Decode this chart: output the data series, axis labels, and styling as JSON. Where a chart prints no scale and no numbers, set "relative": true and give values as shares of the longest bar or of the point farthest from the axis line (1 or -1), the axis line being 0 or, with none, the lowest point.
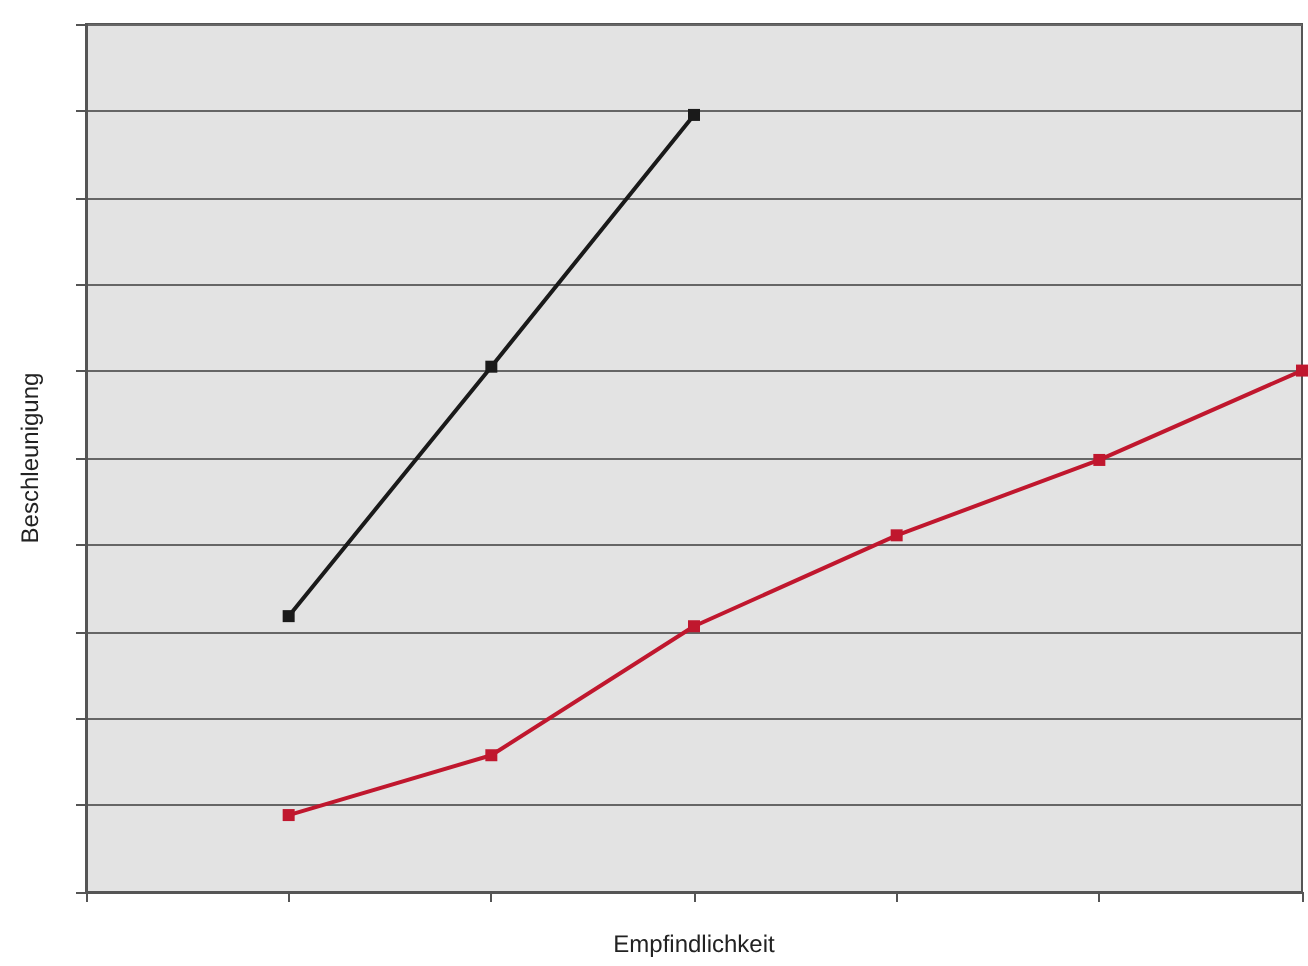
{
  "chart_data": {
    "type": "line",
    "xlabel": "Empfindlichkeit",
    "ylabel": "Beschleunigung",
    "relative": true,
    "categories": [
      null,
      null,
      null,
      null,
      null,
      null,
      null
    ],
    "series": [
      {
        "color": "#1a1a1a",
        "values": [
          null,
          0.355,
          0.676,
          1.0,
          null,
          null,
          null
        ]
      },
      {
        "color": "#c0172e",
        "values": [
          null,
          0.099,
          0.176,
          0.342,
          0.459,
          0.556,
          0.671
        ]
      }
    ],
    "marker": "square",
    "line_style": "solid",
    "grid": "y"
  }
}
